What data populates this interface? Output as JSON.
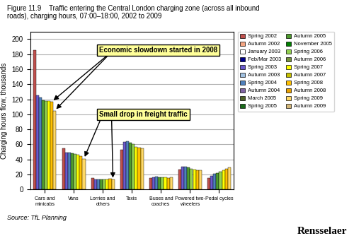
{
  "chart_data": {
    "type": "bar",
    "title": "Figure 11.9    Traffic entering the Central London charging zone (across all inbound\nroads), charging hours, 07:00–18:00, 2002 to 2009",
    "ylabel": "Charging hours flow, thousands",
    "source": "Source: TfL Planning",
    "logo": "Rensselaer",
    "annotations": [
      "Economic slowdown started in 2008",
      "Small drop in freight traffic"
    ],
    "categories": [
      "Cars and\nminicabs",
      "Vans",
      "Lorries and\nothers",
      "Taxis",
      "Buses and\ncoaches",
      "Powered two-\nwheelers",
      "Pedal cycles"
    ],
    "ylim": [
      0,
      210
    ],
    "yticks": [
      0,
      20,
      40,
      60,
      80,
      100,
      120,
      140,
      160,
      180,
      200
    ],
    "grid": true,
    "legend": "upper left",
    "series": [
      {
        "name": "Spring 2002",
        "color": "#c0504d",
        "values": [
          185,
          55,
          15,
          53,
          15,
          27,
          15
        ]
      },
      {
        "name": "Autumn 2002",
        "color": "#f4a582",
        "values": [
          null,
          null,
          null,
          null,
          null,
          null,
          null
        ]
      },
      {
        "name": "January 2003",
        "color": "#ffffff",
        "values": [
          null,
          null,
          null,
          null,
          null,
          null,
          null
        ]
      },
      {
        "name": "Feb/Mar 2003",
        "color": "#00008b",
        "values": [
          null,
          null,
          null,
          null,
          null,
          null,
          null
        ]
      },
      {
        "name": "Spring 2003",
        "color": "#6a5acd",
        "values": [
          125,
          49,
          13,
          63,
          16,
          30,
          18
        ]
      },
      {
        "name": "Autumn 2003",
        "color": "#a0c0e0",
        "values": [
          null,
          null,
          null,
          null,
          null,
          null,
          null
        ]
      },
      {
        "name": "Spring 2004",
        "color": "#4f81bd",
        "values": [
          122,
          49,
          13,
          64,
          17,
          30,
          21
        ]
      },
      {
        "name": "Autumn 2004",
        "color": "#8064a2",
        "values": [
          null,
          null,
          null,
          null,
          null,
          null,
          null
        ]
      },
      {
        "name": "March 2005",
        "color": "#4f6228",
        "values": [
          null,
          null,
          null,
          null,
          null,
          null,
          null
        ]
      },
      {
        "name": "Spring 2005",
        "color": "#1a6b1a",
        "values": [
          null,
          null,
          null,
          null,
          null,
          null,
          null
        ]
      },
      {
        "name": "Autumn 2005",
        "color": "#4e9c2e",
        "values": [
          119,
          48,
          13,
          62,
          16,
          29,
          22
        ]
      },
      {
        "name": "November 2005",
        "color": "#008000",
        "values": [
          null,
          null,
          null,
          null,
          null,
          null,
          null
        ]
      },
      {
        "name": "Spring 2006",
        "color": "#92d050",
        "values": [
          118,
          47,
          13,
          60,
          16,
          28,
          24
        ]
      },
      {
        "name": "Autumn 2006",
        "color": "#76923c",
        "values": [
          null,
          null,
          null,
          null,
          null,
          null,
          null
        ]
      },
      {
        "name": "Spring 2007",
        "color": "#ffff00",
        "values": [
          118,
          46,
          13,
          57,
          16,
          27,
          26
        ]
      },
      {
        "name": "Autumn 2007",
        "color": "#c6c000",
        "values": [
          null,
          null,
          null,
          null,
          null,
          null,
          null
        ]
      },
      {
        "name": "Spring 2008",
        "color": "#ffc000",
        "values": [
          117,
          44,
          14,
          56,
          15,
          26,
          28
        ]
      },
      {
        "name": "Autumn 2008",
        "color": "#e8a000",
        "values": [
          null,
          null,
          null,
          null,
          null,
          null,
          null
        ]
      },
      {
        "name": "Spring 2009",
        "color": "#ffd966",
        "values": [
          105,
          41,
          13,
          55,
          16,
          26,
          29
        ]
      },
      {
        "name": "Autumn 2009",
        "color": "#d4b87a",
        "values": [
          null,
          null,
          null,
          null,
          null,
          null,
          null
        ]
      }
    ]
  }
}
